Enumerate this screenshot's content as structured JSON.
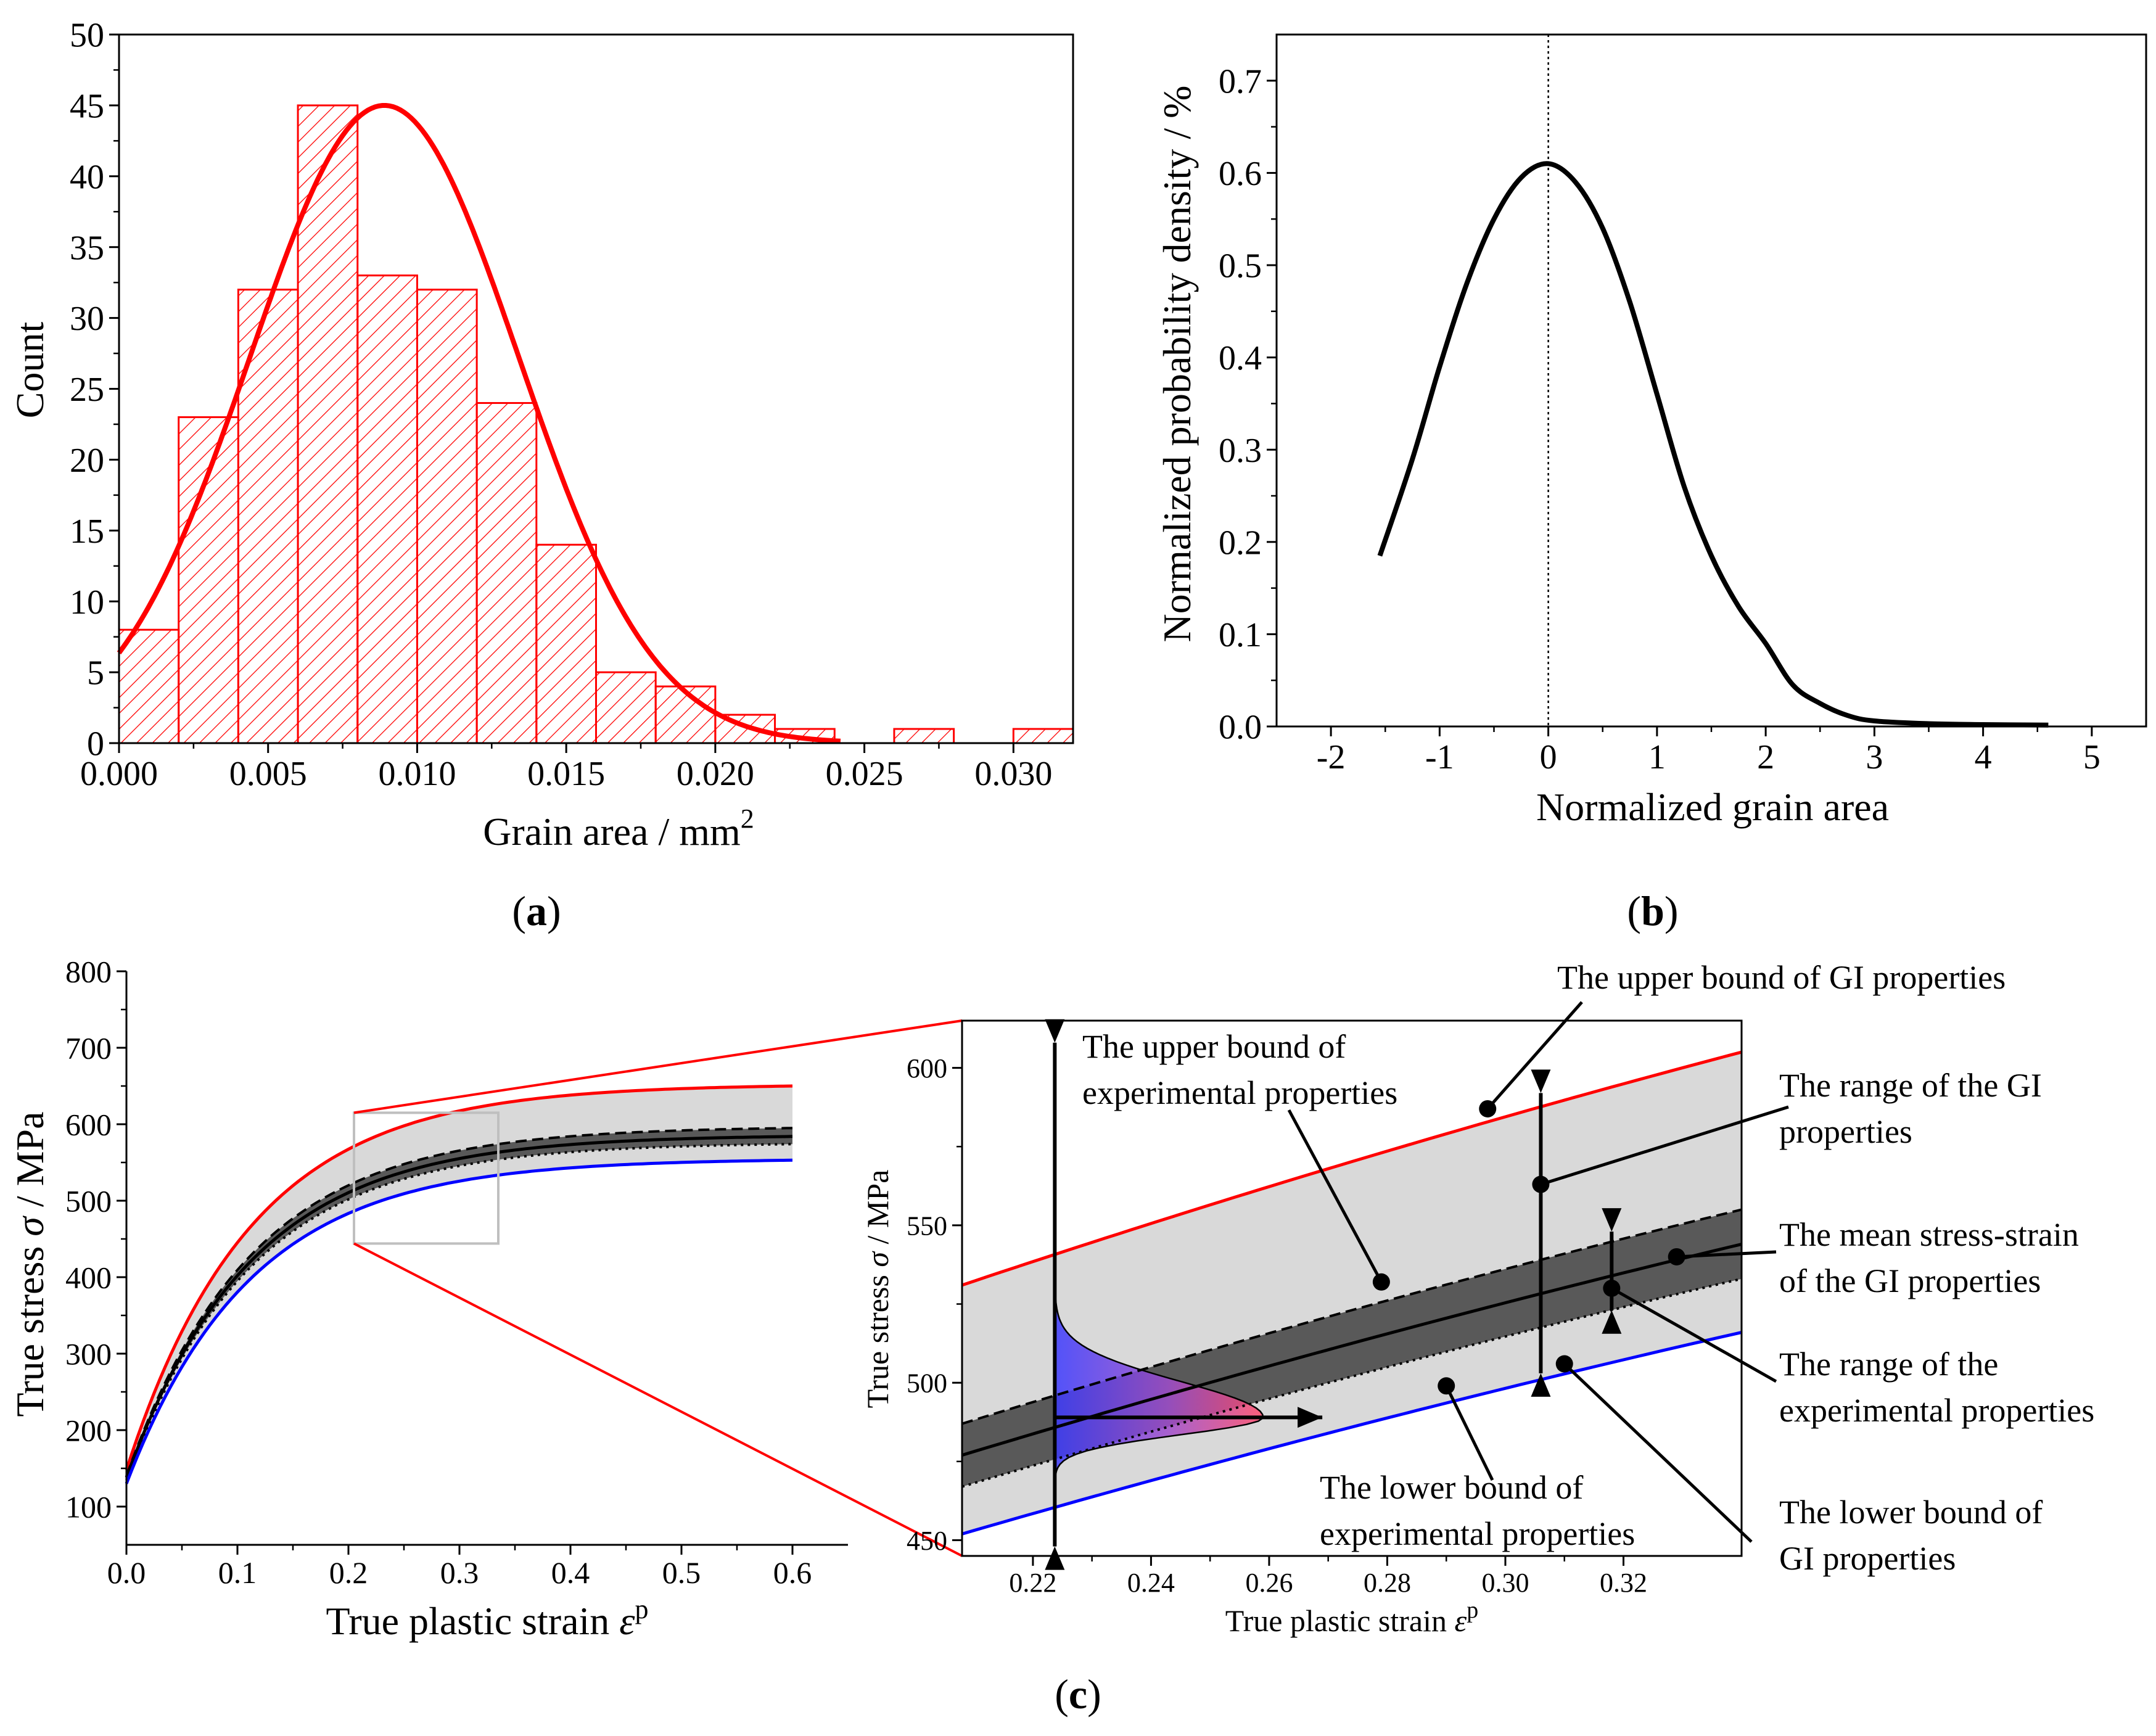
{
  "chart_data": [
    {
      "id": "a",
      "type": "bar",
      "panel_label": "a",
      "xlabel": "Grain area / mm",
      "xlabel_superscript": "2",
      "ylabel": "Count",
      "xlim": [
        0,
        0.032
      ],
      "ylim": [
        0,
        50
      ],
      "x_ticks": [
        "0.000",
        "0.005",
        "0.010",
        "0.015",
        "0.020",
        "0.025",
        "0.030"
      ],
      "y_ticks": [
        "0",
        "5",
        "10",
        "15",
        "20",
        "25",
        "30",
        "35",
        "40",
        "45",
        "50"
      ],
      "bin_width": 0.002,
      "bins": [
        {
          "start": 0.0,
          "count": 8
        },
        {
          "start": 0.002,
          "count": 23
        },
        {
          "start": 0.004,
          "count": 32
        },
        {
          "start": 0.006,
          "count": 45
        },
        {
          "start": 0.008,
          "count": 33
        },
        {
          "start": 0.01,
          "count": 32
        },
        {
          "start": 0.012,
          "count": 24
        },
        {
          "start": 0.014,
          "count": 14
        },
        {
          "start": 0.016,
          "count": 5
        },
        {
          "start": 0.018,
          "count": 4
        },
        {
          "start": 0.02,
          "count": 2
        },
        {
          "start": 0.022,
          "count": 1
        },
        {
          "start": 0.026,
          "count": 1
        },
        {
          "start": 0.03,
          "count": 1
        }
      ],
      "fit": {
        "type": "normal",
        "mean": 0.0089,
        "sd": 0.0045,
        "peak": 45,
        "x_range": [
          0,
          0.0242
        ]
      },
      "color": "#ff0000"
    },
    {
      "id": "b",
      "type": "line",
      "panel_label": "b",
      "xlabel": "Normalized grain area",
      "ylabel": "Normalized probability density / %",
      "xlim": [
        -2.5,
        5.5
      ],
      "ylim": [
        0,
        0.75
      ],
      "x_ticks": [
        "-2",
        "-1",
        "0",
        "1",
        "2",
        "3",
        "4",
        "5"
      ],
      "y_ticks": [
        "0.0",
        "0.1",
        "0.2",
        "0.3",
        "0.4",
        "0.5",
        "0.6",
        "0.7"
      ],
      "vline_x": 0,
      "series": [
        {
          "name": "density",
          "color": "#000000",
          "x": [
            -1.55,
            -1.25,
            -1.0,
            -0.75,
            -0.5,
            -0.25,
            0.0,
            0.25,
            0.5,
            0.75,
            1.0,
            1.25,
            1.5,
            1.75,
            2.0,
            2.25,
            2.5,
            2.75,
            3.0,
            3.5,
            4.0,
            4.6
          ],
          "y": [
            0.185,
            0.29,
            0.39,
            0.48,
            0.55,
            0.595,
            0.61,
            0.59,
            0.54,
            0.46,
            0.36,
            0.26,
            0.185,
            0.13,
            0.09,
            0.045,
            0.025,
            0.012,
            0.006,
            0.003,
            0.002,
            0.0015
          ]
        }
      ]
    },
    {
      "id": "c_main",
      "type": "line",
      "panel_label": "c",
      "xlabel": "True plastic strain ",
      "xlabel_symbol": "ε",
      "xlabel_superscript": "p",
      "ylabel": "True stress ",
      "ylabel_symbol": "σ",
      "ylabel_unit": " / MPa",
      "xlim": [
        0,
        0.65
      ],
      "ylim": [
        50,
        800
      ],
      "x_ticks": [
        "0.0",
        "0.1",
        "0.2",
        "0.3",
        "0.4",
        "0.5",
        "0.6"
      ],
      "y_ticks": [
        "100",
        "200",
        "300",
        "400",
        "500",
        "600",
        "700",
        "800"
      ],
      "zoom_box": {
        "x": [
          0.205,
          0.335
        ],
        "y": [
          444,
          615
        ]
      },
      "series": [
        {
          "name": "GI upper bound",
          "color": "#ff0000",
          "style": "solid",
          "y0": 148,
          "y_end": 650
        },
        {
          "name": "Experimental upper bound",
          "color": "#000000",
          "style": "dashed",
          "y0": 140,
          "y_end": 595
        },
        {
          "name": "Mean stress-strain",
          "color": "#000000",
          "style": "solid",
          "y0": 138,
          "y_end": 584
        },
        {
          "name": "Experimental lower bound",
          "color": "#000000",
          "style": "dotted",
          "y0": 135,
          "y_end": 574
        },
        {
          "name": "GI lower bound",
          "color": "#0000ff",
          "style": "solid",
          "y0": 130,
          "y_end": 553
        }
      ],
      "curve_rate": 8.9,
      "x_range": [
        0,
        0.6
      ]
    },
    {
      "id": "c_zoom",
      "type": "line",
      "xlabel": "True plastic strain ",
      "xlabel_symbol": "ε",
      "xlabel_superscript": "p",
      "ylabel": "True stress ",
      "ylabel_symbol": "σ",
      "ylabel_unit": " / MPa",
      "xlim": [
        0.208,
        0.34
      ],
      "ylim": [
        445,
        615
      ],
      "x_ticks": [
        "0.22",
        "0.24",
        "0.26",
        "0.28",
        "0.30",
        "0.32"
      ],
      "y_ticks": [
        "450",
        "500",
        "550",
        "600"
      ],
      "series": [
        {
          "name": "GI upper bound",
          "color": "#ff0000",
          "style": "solid",
          "y_start": 531,
          "y_end": 605
        },
        {
          "name": "Experimental upper bound",
          "color": "#000000",
          "style": "dashed",
          "y_start": 487,
          "y_end": 555
        },
        {
          "name": "Mean stress-strain",
          "color": "#000000",
          "style": "solid",
          "y_start": 477,
          "y_end": 544
        },
        {
          "name": "Experimental lower bound",
          "color": "#000000",
          "style": "dotted",
          "y_start": 467,
          "y_end": 533
        },
        {
          "name": "GI lower bound",
          "color": "#0000ff",
          "style": "solid",
          "y_start": 452,
          "y_end": 516
        }
      ],
      "annotations": [
        {
          "text": [
            "The upper bound of GI properties"
          ],
          "point": [
            0.297,
            587
          ]
        },
        {
          "text": [
            "The upper bound of",
            "experimental properties"
          ],
          "point": [
            0.279,
            532
          ]
        },
        {
          "text": [
            "The range of the GI",
            "properties"
          ],
          "point": [
            0.306,
            563
          ]
        },
        {
          "text": [
            "The mean stress-strain",
            "of the GI properties"
          ],
          "point": [
            0.329,
            540
          ]
        },
        {
          "text": [
            "The range of the",
            "experimental properties"
          ],
          "point": [
            0.318,
            530
          ]
        },
        {
          "text": [
            "The lower bound of",
            "experimental properties"
          ],
          "point": [
            0.29,
            499
          ]
        },
        {
          "text": [
            "The lower bound of",
            "GI properties"
          ],
          "point": [
            0.31,
            506
          ]
        }
      ]
    }
  ],
  "colors": {
    "red": "#ff0000",
    "blue": "#0000ff",
    "light_band": "#d9d9d9",
    "dark_band": "#595959",
    "zoom_box": "#bfbfbf"
  }
}
